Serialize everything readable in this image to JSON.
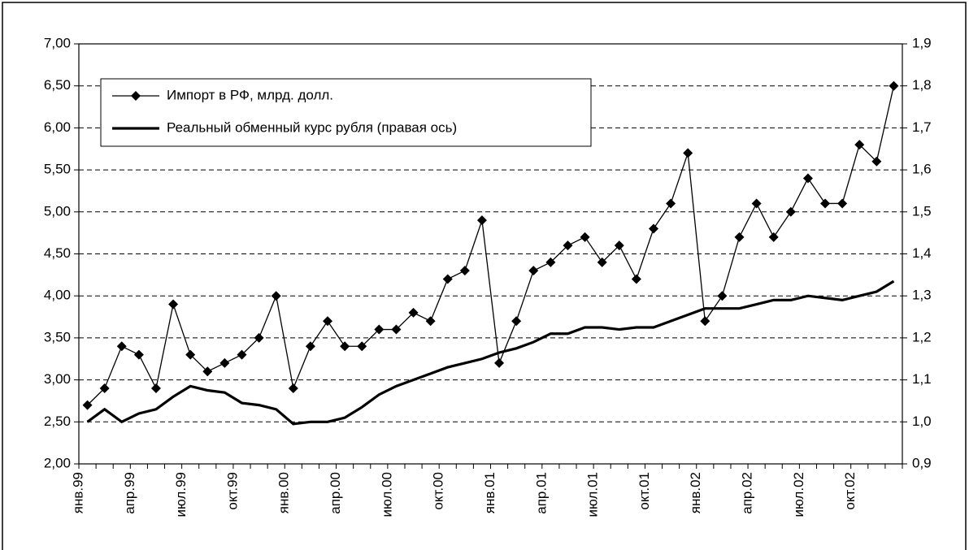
{
  "chart_data": {
    "type": "line",
    "categories": [
      "янв.99",
      null,
      null,
      "апр.99",
      null,
      null,
      "июл.99",
      null,
      null,
      "окт.99",
      null,
      null,
      "янв.00",
      null,
      null,
      "апр.00",
      null,
      null,
      "июл.00",
      null,
      null,
      "окт.00",
      null,
      null,
      "янв.01",
      null,
      null,
      "апр.01",
      null,
      null,
      "июл.01",
      null,
      null,
      "окт.01",
      null,
      null,
      "янв.02",
      null,
      null,
      "апр.02",
      null,
      null,
      "июл.02",
      null,
      null,
      "окт.02",
      null,
      null
    ],
    "series": [
      {
        "name": "Импорт в РФ, млрд. долл.",
        "color": "#000000",
        "marker": "diamond",
        "axis": "y",
        "values": [
          2.7,
          2.9,
          3.4,
          3.3,
          2.9,
          3.9,
          3.3,
          3.1,
          3.2,
          3.3,
          3.5,
          4.0,
          2.9,
          3.4,
          3.7,
          3.4,
          3.4,
          3.6,
          3.6,
          3.8,
          3.7,
          4.2,
          4.3,
          4.9,
          3.2,
          3.7,
          4.3,
          4.4,
          4.6,
          4.7,
          4.4,
          4.6,
          4.2,
          4.8,
          5.1,
          5.7,
          3.7,
          4.0,
          4.7,
          5.1,
          4.7,
          5.0,
          5.4,
          5.1,
          5.1,
          5.8,
          5.6,
          6.5
        ]
      },
      {
        "name": "Реальный обменный курс рубля (правая ось)",
        "color": "#000000",
        "axis": "y2",
        "values": [
          1.0,
          1.03,
          1.0,
          1.02,
          1.03,
          1.06,
          1.085,
          1.075,
          1.07,
          1.045,
          1.04,
          1.03,
          0.995,
          1.0,
          1.0,
          1.01,
          1.035,
          1.065,
          1.085,
          1.1,
          1.115,
          1.13,
          1.14,
          1.15,
          1.165,
          1.175,
          1.19,
          1.21,
          1.21,
          1.225,
          1.225,
          1.22,
          1.225,
          1.225,
          1.24,
          1.255,
          1.27,
          1.27,
          1.27,
          1.28,
          1.29,
          1.29,
          1.3,
          1.295,
          1.29,
          1.3,
          1.31,
          1.335
        ]
      }
    ],
    "ylim": [
      2,
      7
    ],
    "yticks": [
      {
        "value": 2,
        "label": "2,00"
      },
      {
        "value": 2.5,
        "label": "2,50"
      },
      {
        "value": 3,
        "label": "3,00"
      },
      {
        "value": 3.5,
        "label": "3,50"
      },
      {
        "value": 4,
        "label": "4,00"
      },
      {
        "value": 4.5,
        "label": "4,50"
      },
      {
        "value": 5,
        "label": "5,00"
      },
      {
        "value": 5.5,
        "label": "5,50"
      },
      {
        "value": 6,
        "label": "6,00"
      },
      {
        "value": 6.5,
        "label": "6,50"
      },
      {
        "value": 7,
        "label": "7,00"
      }
    ],
    "y2lim": [
      0.9,
      1.9
    ],
    "y2ticks": [
      {
        "value": 0.9,
        "label": "0,9"
      },
      {
        "value": 1.0,
        "label": "1,0"
      },
      {
        "value": 1.1,
        "label": "1,1"
      },
      {
        "value": 1.2,
        "label": "1,2"
      },
      {
        "value": 1.3,
        "label": "1,3"
      },
      {
        "value": 1.4,
        "label": "1,4"
      },
      {
        "value": 1.5,
        "label": "1,5"
      },
      {
        "value": 1.6,
        "label": "1,6"
      },
      {
        "value": 1.7,
        "label": "1,7"
      },
      {
        "value": 1.8,
        "label": "1,8"
      },
      {
        "value": 1.9,
        "label": "1,9"
      }
    ],
    "grid": true,
    "legend": "upper left"
  }
}
